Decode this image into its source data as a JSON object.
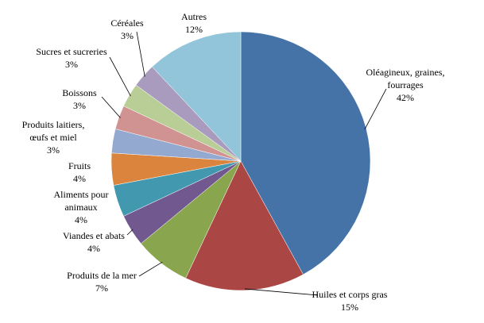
{
  "chart_data": {
    "type": "pie",
    "categories": [
      "Oléagineux, graines,\nfourrages",
      "Huiles et corps gras",
      "Produits de la mer",
      "Viandes et abats",
      "Aliments pour\nanimaux",
      "Fruits",
      "Produits laitiers,\nœufs et miel",
      "Boissons",
      "Sucres et sucreries",
      "Céréales",
      "Autres"
    ],
    "values": [
      42,
      15,
      7,
      4,
      4,
      4,
      3,
      3,
      3,
      3,
      12
    ],
    "value_labels": [
      "42%",
      "15%",
      "7%",
      "4%",
      "4%",
      "4%",
      "3%",
      "3%",
      "3%",
      "3%",
      "12%"
    ],
    "colors": [
      "#4572a7",
      "#aa4643",
      "#89a54e",
      "#71588f",
      "#4198af",
      "#db843d",
      "#93a9cf",
      "#d19392",
      "#b9cd96",
      "#a99bbd",
      "#92c5d9"
    ]
  }
}
